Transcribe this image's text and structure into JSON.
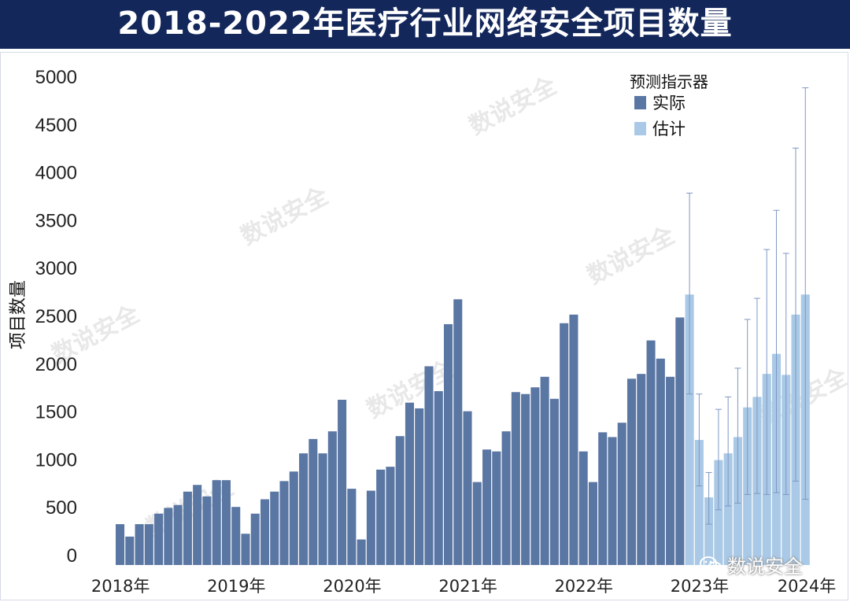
{
  "header": {
    "title": "2018-2022年医疗行业网络安全项目数量"
  },
  "watermark": {
    "text": "数说安全"
  },
  "brand": {
    "label": "数说安全",
    "icon": "wechat-icon"
  },
  "colors": {
    "actual": "#5a76a3",
    "estimate": "#a9c9e6",
    "errorbar": "#7f97c2",
    "title_bg": "#13275b"
  },
  "chart_data": {
    "type": "bar",
    "title": "2018-2022年医疗行业网络安全项目数量",
    "ylabel": "项目数量",
    "xlabel": "",
    "ylim": [
      0,
      5000
    ],
    "yticks": [
      0,
      500,
      1000,
      1500,
      2000,
      2500,
      3000,
      3500,
      4000,
      4500,
      5000
    ],
    "x_tick_labels": [
      "2018年",
      "2019年",
      "2020年",
      "2021年",
      "2022年",
      "2023年",
      "2024年"
    ],
    "legend": {
      "title": "预测指示器",
      "position": "top-right",
      "items": [
        "实际",
        "估计"
      ]
    },
    "series": [
      {
        "name": "实际",
        "values": [
          320,
          190,
          320,
          320,
          430,
          490,
          520,
          660,
          730,
          610,
          780,
          780,
          500,
          220,
          430,
          580,
          660,
          770,
          870,
          1060,
          1210,
          1060,
          1290,
          1620,
          690,
          160,
          670,
          890,
          920,
          1240,
          1590,
          1530,
          1970,
          1710,
          2410,
          2670,
          1500,
          760,
          1100,
          1080,
          1290,
          1700,
          1680,
          1750,
          1860,
          1630,
          2420,
          2510,
          1080,
          760,
          1280,
          1230,
          1380,
          1840,
          1890,
          2240,
          2050,
          1860,
          2480
        ]
      },
      {
        "name": "估计",
        "values": [
          2720,
          1200,
          600,
          990,
          1060,
          1230,
          1540,
          1650,
          1890,
          2100,
          1880,
          2510,
          2720
        ],
        "error_low": [
          1680,
          720,
          320,
          470,
          510,
          540,
          630,
          640,
          630,
          650,
          630,
          770,
          580
        ],
        "error_high": [
          3780,
          1680,
          860,
          1520,
          1650,
          1950,
          2460,
          2680,
          3190,
          3600,
          3150,
          4250,
          4880
        ]
      }
    ]
  }
}
